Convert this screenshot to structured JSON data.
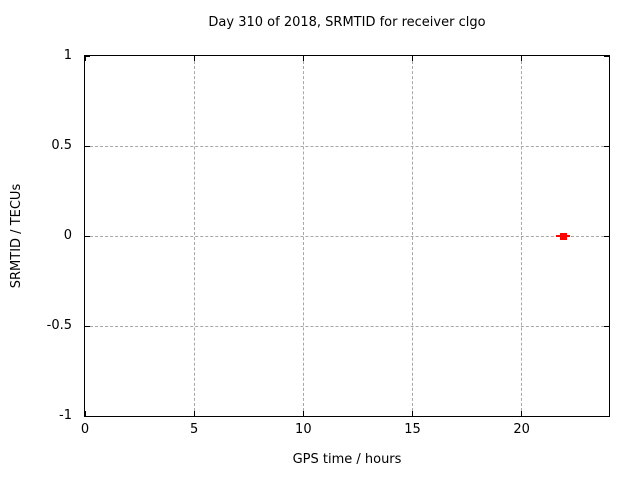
{
  "chart_data": {
    "type": "scatter",
    "title": "Day 310 of 2018, SRMTID for receiver clgo",
    "xlabel": "GPS time / hours",
    "ylabel": "SRMTID / TECUs",
    "xlim": [
      0,
      24
    ],
    "ylim": [
      -1,
      1
    ],
    "xticks": [
      {
        "value": 0,
        "label": "0"
      },
      {
        "value": 5,
        "label": "5"
      },
      {
        "value": 10,
        "label": "10"
      },
      {
        "value": 15,
        "label": "15"
      },
      {
        "value": 20,
        "label": "20"
      }
    ],
    "yticks": [
      {
        "value": -1,
        "label": "-1"
      },
      {
        "value": -0.5,
        "label": "-0.5"
      },
      {
        "value": 0,
        "label": "0"
      },
      {
        "value": 0.5,
        "label": "0.5"
      },
      {
        "value": 1,
        "label": "1"
      }
    ],
    "grid": true,
    "grid_style": "dashed",
    "grid_color": "#a8a8a8",
    "axis_color": "#000000",
    "background_color": "#ffffff",
    "legend": "none",
    "series": [
      {
        "name": "SRMTID",
        "marker": "filled-square-with-x-errorbar",
        "color": "#ff0000",
        "points": [
          {
            "x": 21.9,
            "y": 0
          }
        ]
      }
    ]
  }
}
